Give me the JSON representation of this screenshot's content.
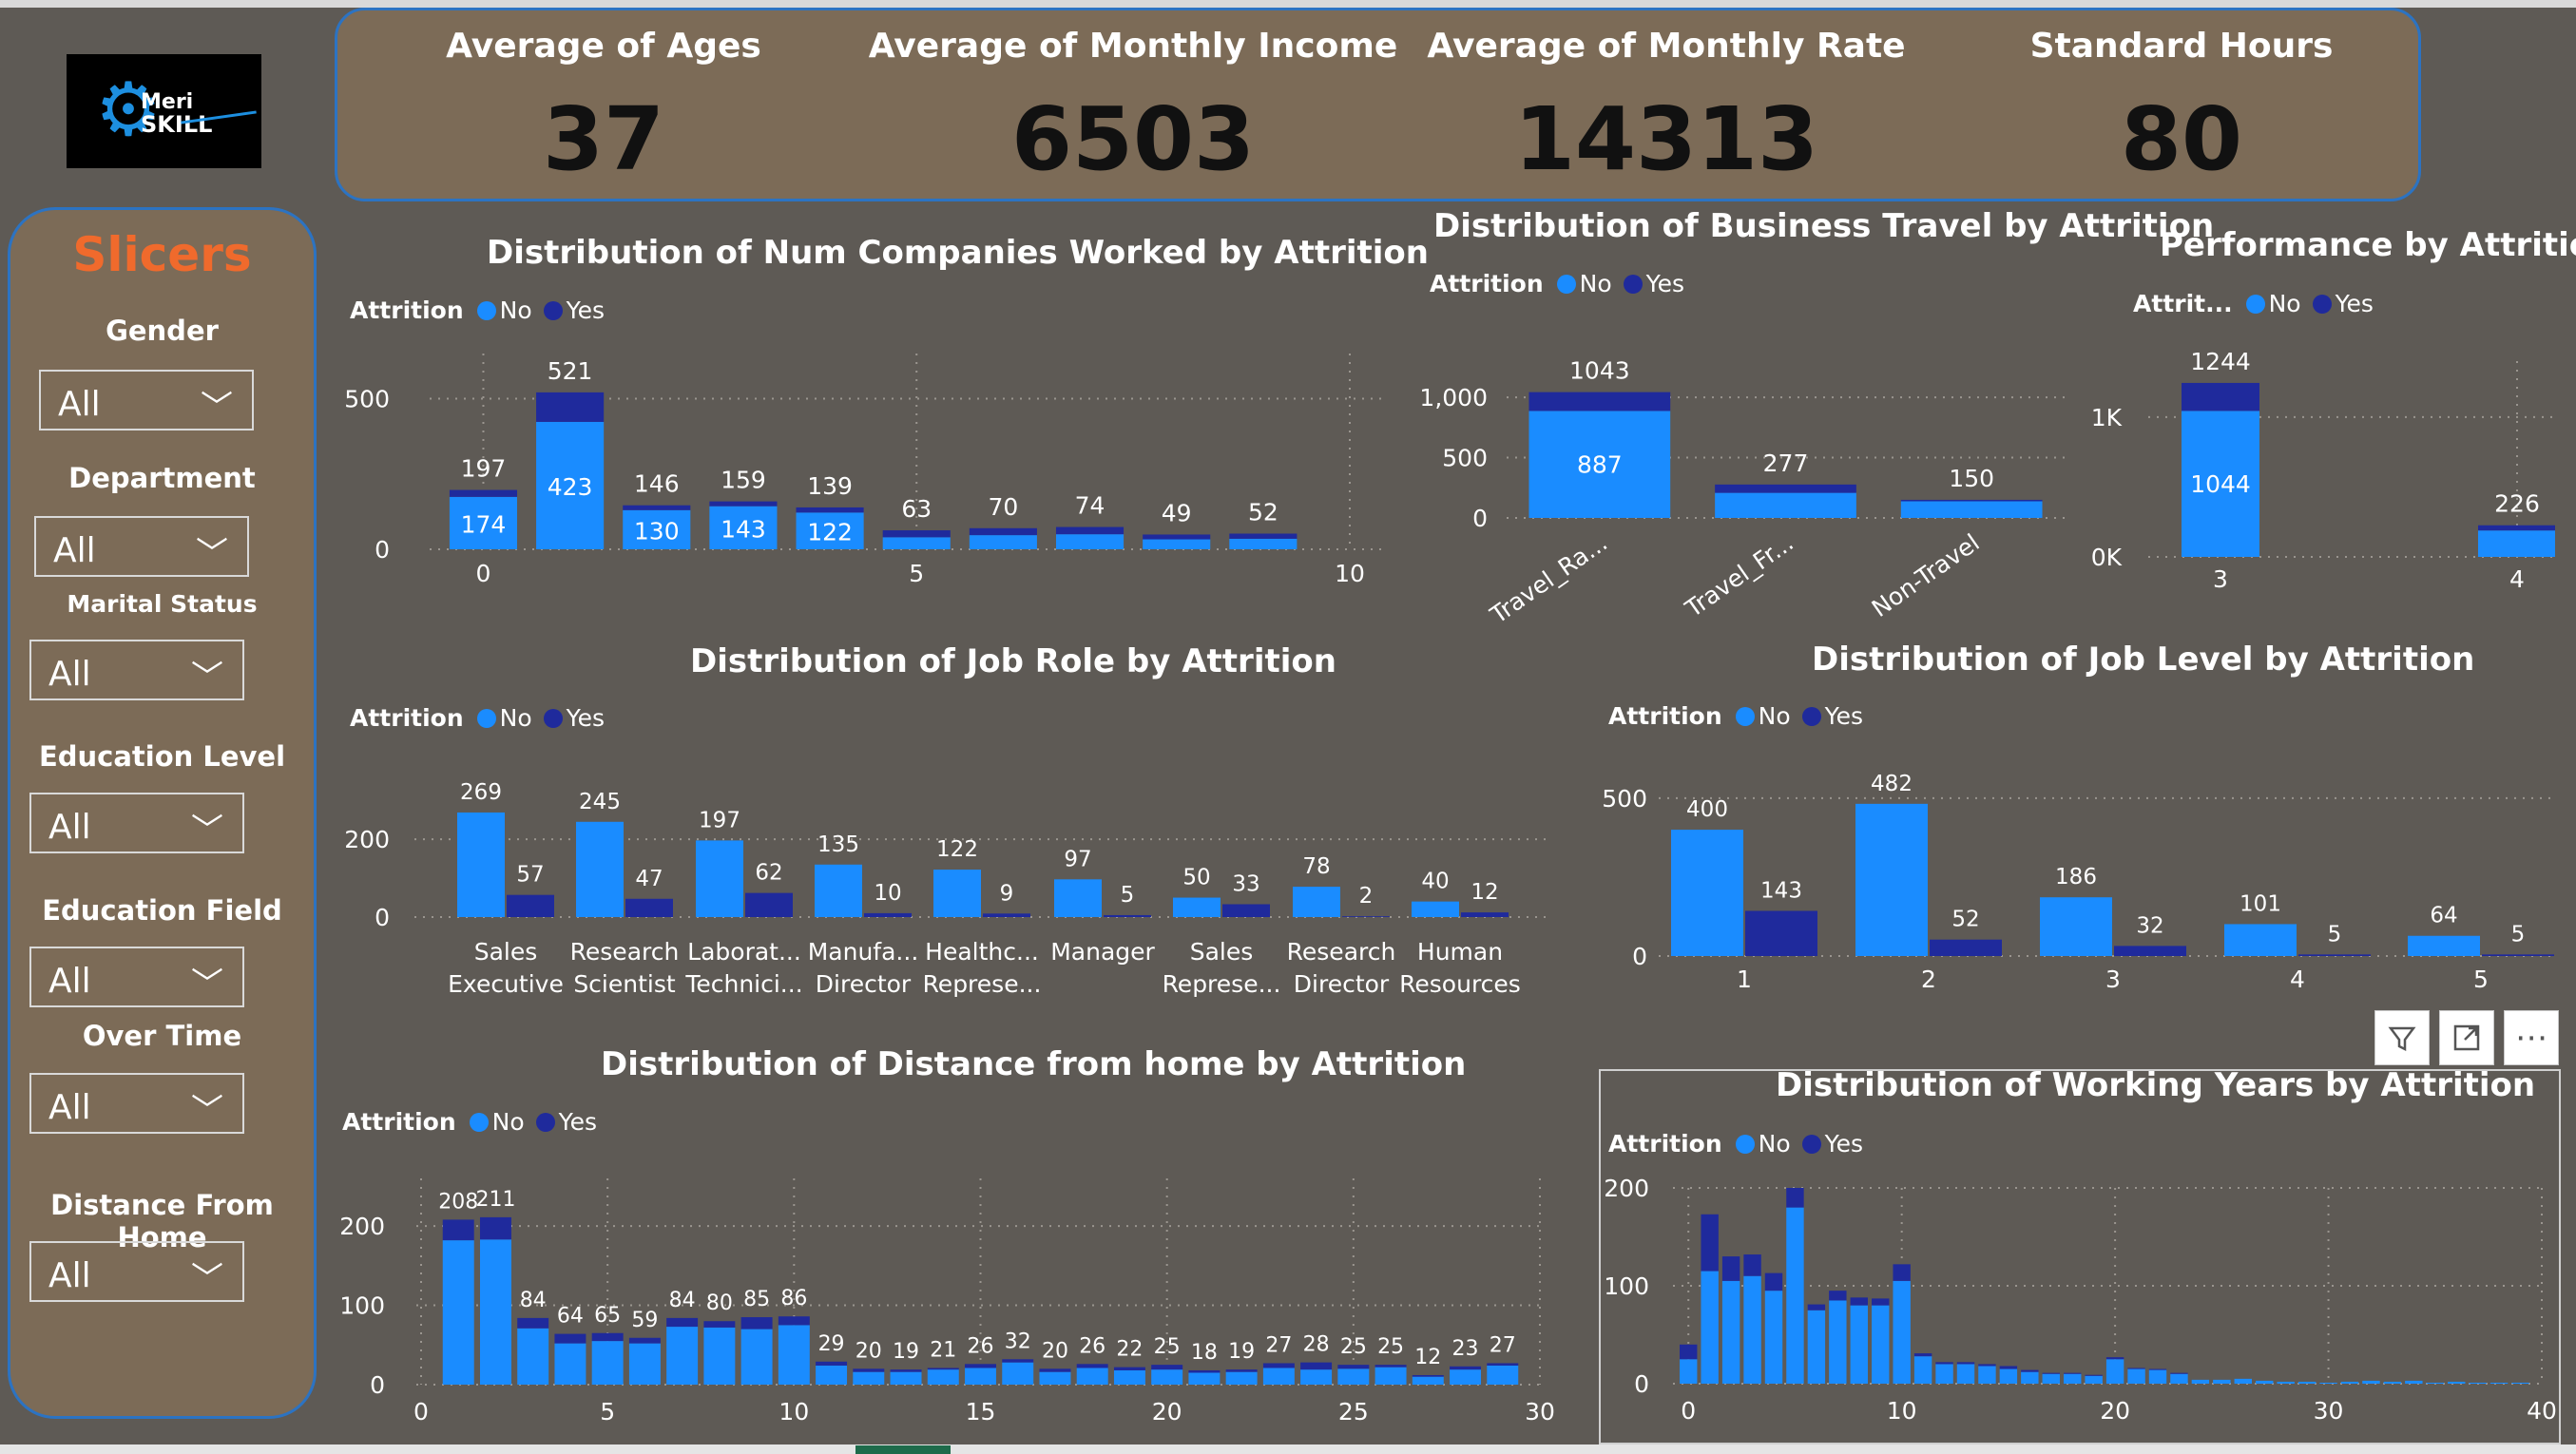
{
  "colors": {
    "no": "#1a8cff",
    "yes": "#1f2a9c",
    "background": "#5e5a55",
    "panel": "#7c6b57",
    "panel_border": "#2c73c2",
    "slicer_title": "#f06a2c"
  },
  "logo": {
    "text_line1": "Meri",
    "text_line2": "SKILL",
    "icon": "gear-icon"
  },
  "kpis": [
    {
      "label": "Average of Ages",
      "value": "37"
    },
    {
      "label": "Average of Monthly Income",
      "value": "6503"
    },
    {
      "label": "Average of Monthly Rate",
      "value": "14313"
    },
    {
      "label": "Standard Hours",
      "value": "80"
    }
  ],
  "slicers": {
    "title": "Slicers",
    "items": [
      {
        "label": "Gender",
        "value": "All"
      },
      {
        "label": "Department",
        "value": "All"
      },
      {
        "label": "Marital Status",
        "value": "All"
      },
      {
        "label": "Education Level",
        "value": "All"
      },
      {
        "label": "Education Field",
        "value": "All"
      },
      {
        "label": "Over Time",
        "value": "All"
      },
      {
        "label": "Distance From Home",
        "value": "All"
      }
    ]
  },
  "legend": {
    "title": "Attrition",
    "title_short": "Attrit...",
    "no": "No",
    "yes": "Yes"
  },
  "toolbar": {
    "filter_icon": "filter-icon",
    "focus_icon": "focus-mode-icon",
    "more_label": "⋯"
  },
  "chart_data": [
    {
      "id": "companies",
      "type": "bar",
      "stacked": true,
      "title": "Distribution of Num Companies Worked by Attrition",
      "x": [
        0,
        1,
        2,
        3,
        4,
        5,
        6,
        7,
        8,
        9
      ],
      "series": [
        {
          "name": "No",
          "values": [
            174,
            423,
            130,
            143,
            122,
            40,
            47,
            50,
            33,
            35
          ]
        },
        {
          "name": "Yes",
          "values": [
            23,
            98,
            16,
            16,
            17,
            23,
            23,
            24,
            16,
            17
          ]
        }
      ],
      "totals": [
        197,
        521,
        146,
        159,
        139,
        63,
        70,
        74,
        49,
        52
      ],
      "inner_labels": [
        174,
        423,
        130,
        143,
        122,
        null,
        null,
        null,
        null,
        null
      ],
      "xticks": [
        0,
        5,
        10
      ],
      "yticks": [
        0,
        500
      ],
      "xlim": [
        -0.4,
        10
      ],
      "ylim": [
        0,
        650
      ]
    },
    {
      "id": "travel",
      "type": "bar",
      "stacked": true,
      "title": "Distribution of Business Travel by Attrition",
      "categories": [
        "Travel_Ra...",
        "Travel_Fr...",
        "Non-Travel"
      ],
      "series": [
        {
          "name": "No",
          "values": [
            887,
            208,
            138
          ]
        },
        {
          "name": "Yes",
          "values": [
            156,
            69,
            12
          ]
        }
      ],
      "totals": [
        1043,
        277,
        150
      ],
      "inner_labels": [
        887,
        null,
        null
      ],
      "yticks": [
        0,
        500,
        1000
      ],
      "ytick_labels": [
        "0",
        "500",
        "1,000"
      ],
      "ylim": [
        0,
        1300
      ]
    },
    {
      "id": "performance",
      "type": "bar",
      "stacked": true,
      "title": "Performance by Attrition",
      "categories": [
        "3",
        "4"
      ],
      "series": [
        {
          "name": "No",
          "values": [
            1044,
            189
          ]
        },
        {
          "name": "Yes",
          "values": [
            200,
            37
          ]
        }
      ],
      "totals": [
        1244,
        226
      ],
      "inner_labels": [
        1044,
        null
      ],
      "yticks": [
        0,
        1000
      ],
      "ytick_labels": [
        "0K",
        "1K"
      ],
      "ylim": [
        0,
        1400
      ]
    },
    {
      "id": "jobrole",
      "type": "bar",
      "stacked": false,
      "title": "Distribution of Job Role by Attrition",
      "categories": [
        [
          "Sales",
          "Executive"
        ],
        [
          "Research",
          "Scientist"
        ],
        [
          "Laborat...",
          "Technici..."
        ],
        [
          "Manufa...",
          "Director"
        ],
        [
          "Healthc...",
          "Represe..."
        ],
        [
          "Manager",
          ""
        ],
        [
          "Sales",
          "Represe..."
        ],
        [
          "Research",
          "Director"
        ],
        [
          "Human",
          "Resources"
        ]
      ],
      "series": [
        {
          "name": "No",
          "values": [
            269,
            245,
            197,
            135,
            122,
            97,
            50,
            78,
            40
          ]
        },
        {
          "name": "Yes",
          "values": [
            57,
            47,
            62,
            10,
            9,
            5,
            33,
            2,
            12
          ]
        }
      ],
      "yticks": [
        0,
        200
      ],
      "ylim": [
        0,
        330
      ]
    },
    {
      "id": "joblevel",
      "type": "bar",
      "stacked": false,
      "title": "Distribution of Job Level by Attrition",
      "categories": [
        "1",
        "2",
        "3",
        "4",
        "5"
      ],
      "series": [
        {
          "name": "No",
          "values": [
            400,
            482,
            186,
            101,
            64
          ]
        },
        {
          "name": "Yes",
          "values": [
            143,
            52,
            32,
            5,
            5
          ]
        }
      ],
      "yticks": [
        0,
        500
      ],
      "ylim": [
        0,
        620
      ]
    },
    {
      "id": "distance",
      "type": "bar",
      "stacked": true,
      "title": "Distribution of Distance from home by Attrition",
      "x": [
        1,
        2,
        3,
        4,
        5,
        6,
        7,
        8,
        9,
        10,
        11,
        12,
        13,
        14,
        15,
        16,
        17,
        18,
        19,
        20,
        21,
        22,
        23,
        24,
        25,
        26,
        27,
        28,
        29
      ],
      "series": [
        {
          "name": "No",
          "values": [
            182,
            183,
            71,
            52,
            55,
            52,
            73,
            72,
            70,
            75,
            24,
            16,
            16,
            19,
            21,
            28,
            16,
            21,
            18,
            19,
            15,
            16,
            21,
            19,
            20,
            22,
            10,
            19,
            24
          ]
        },
        {
          "name": "Yes",
          "values": [
            26,
            28,
            13,
            12,
            10,
            7,
            11,
            8,
            15,
            11,
            5,
            4,
            3,
            2,
            5,
            4,
            4,
            5,
            4,
            6,
            3,
            3,
            6,
            9,
            5,
            3,
            2,
            4,
            3
          ]
        }
      ],
      "totals": [
        208,
        211,
        84,
        64,
        65,
        59,
        84,
        80,
        85,
        86,
        29,
        20,
        19,
        21,
        26,
        32,
        20,
        26,
        22,
        25,
        18,
        19,
        27,
        28,
        25,
        25,
        12,
        23,
        27
      ],
      "xticks": [
        0,
        5,
        10,
        15,
        20,
        25,
        30
      ],
      "yticks": [
        0,
        100,
        200
      ],
      "xlim": [
        0,
        30
      ],
      "ylim": [
        0,
        260
      ]
    },
    {
      "id": "workyears",
      "type": "bar",
      "stacked": true,
      "title": "Distribution of Working Years by Attrition",
      "x": [
        0,
        1,
        2,
        3,
        4,
        5,
        6,
        7,
        8,
        9,
        10,
        11,
        12,
        13,
        14,
        15,
        16,
        17,
        18,
        19,
        20,
        21,
        22,
        23,
        24,
        25,
        26,
        27,
        28,
        29,
        30,
        31,
        32,
        33,
        34,
        35,
        36,
        37,
        38,
        39,
        40
      ],
      "series": [
        {
          "name": "No",
          "values": [
            25,
            115,
            105,
            110,
            95,
            180,
            75,
            85,
            80,
            80,
            105,
            28,
            20,
            20,
            18,
            15,
            12,
            10,
            10,
            8,
            25,
            15,
            14,
            10,
            4,
            4,
            5,
            3,
            2,
            2,
            1,
            2,
            3,
            2,
            3,
            1,
            2,
            1,
            1,
            1,
            0
          ]
        },
        {
          "name": "Yes",
          "values": [
            15,
            58,
            25,
            22,
            18,
            20,
            6,
            10,
            8,
            7,
            17,
            3,
            2,
            2,
            2,
            3,
            2,
            1,
            1,
            1,
            2,
            1,
            1,
            1,
            0,
            0,
            0,
            0,
            0,
            0,
            0,
            0,
            0,
            0,
            0,
            0,
            0,
            0,
            0,
            0,
            0
          ]
        }
      ],
      "xticks": [
        0,
        10,
        20,
        30,
        40
      ],
      "yticks": [
        0,
        100,
        200
      ],
      "xlim": [
        -0.5,
        40
      ],
      "ylim": [
        0,
        200
      ]
    }
  ]
}
